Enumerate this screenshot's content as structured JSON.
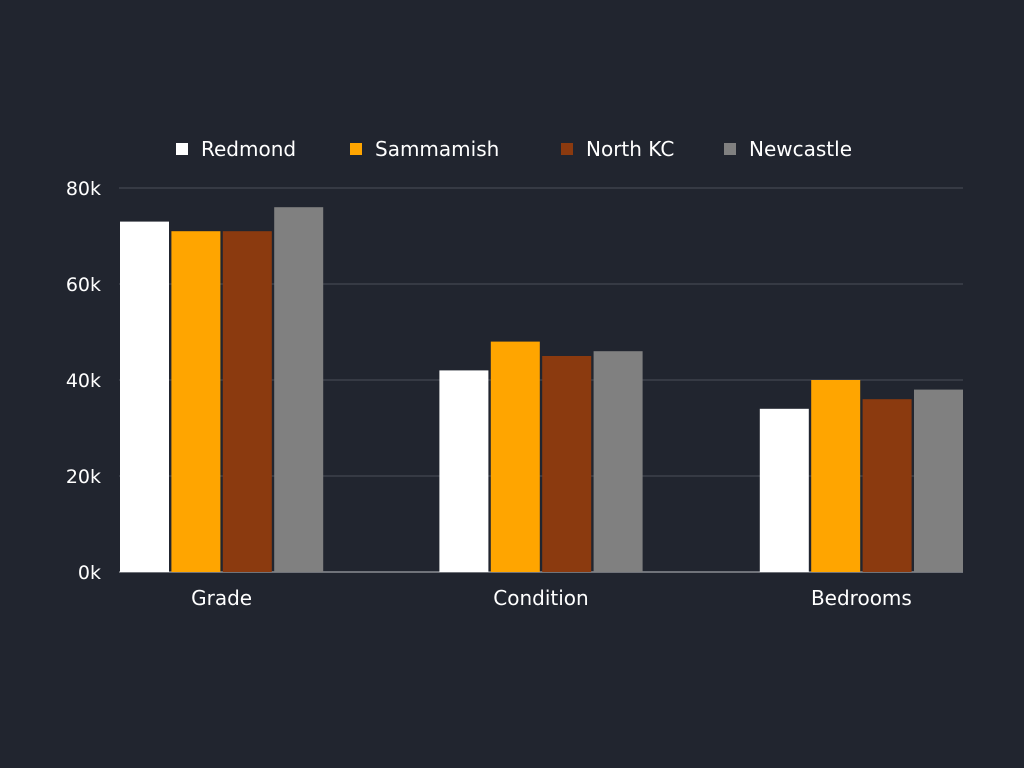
{
  "chart_data": {
    "type": "bar",
    "title": "",
    "xlabel": "",
    "ylabel": "",
    "categories": [
      "Grade",
      "Condition",
      "Bedrooms"
    ],
    "series": [
      {
        "name": "Redmond",
        "color": "#ffffff",
        "values": [
          73000,
          42000,
          34000
        ]
      },
      {
        "name": "Sammamish",
        "color": "#ffa500",
        "values": [
          71000,
          48000,
          40000
        ]
      },
      {
        "name": "North KC",
        "color": "#8b3a0f",
        "values": [
          71000,
          45000,
          36000
        ]
      },
      {
        "name": "Newcastle",
        "color": "#808080",
        "values": [
          76000,
          46000,
          38000
        ]
      }
    ],
    "ylim": [
      0,
      80000
    ],
    "yticks": [
      0,
      20000,
      40000,
      60000,
      80000
    ],
    "ytick_labels": [
      "0k",
      "20k",
      "40k",
      "60k",
      "80k"
    ],
    "grid": true,
    "legend_position": "top"
  },
  "colors": {
    "background": "#21252f",
    "gridline": "#4a4e58",
    "axis": "#8a8d94",
    "text": "#ffffff"
  }
}
